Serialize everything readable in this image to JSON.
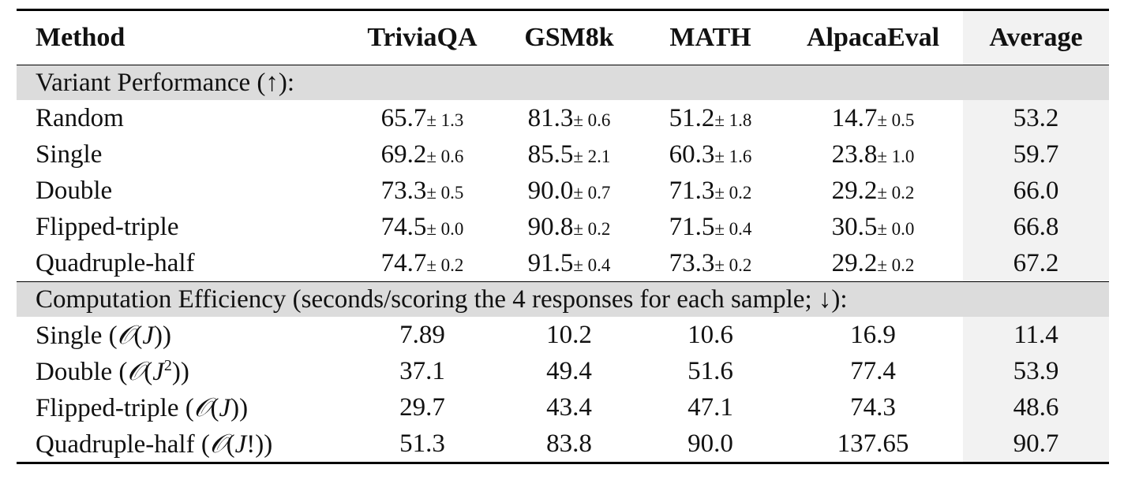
{
  "headers": [
    "Method",
    "TriviaQA",
    "GSM8k",
    "MATH",
    "AlpacaEval",
    "Average"
  ],
  "section1": {
    "label": "Variant Performance (↑):",
    "rows": [
      {
        "method": "Random",
        "vals": [
          [
            "65.7",
            "± 1.3"
          ],
          [
            "81.3",
            "± 0.6"
          ],
          [
            "51.2",
            "± 1.8"
          ],
          [
            "14.7",
            "± 0.5"
          ]
        ],
        "avg": "53.2"
      },
      {
        "method": "Single",
        "vals": [
          [
            "69.2",
            "± 0.6"
          ],
          [
            "85.5",
            "± 2.1"
          ],
          [
            "60.3",
            "± 1.6"
          ],
          [
            "23.8",
            "± 1.0"
          ]
        ],
        "avg": "59.7"
      },
      {
        "method": "Double",
        "vals": [
          [
            "73.3",
            "± 0.5"
          ],
          [
            "90.0",
            "± 0.7"
          ],
          [
            "71.3",
            "± 0.2"
          ],
          [
            "29.2",
            "± 0.2"
          ]
        ],
        "avg": "66.0"
      },
      {
        "method": "Flipped-triple",
        "vals": [
          [
            "74.5",
            "± 0.0"
          ],
          [
            "90.8",
            "± 0.2"
          ],
          [
            "71.5",
            "± 0.4"
          ],
          [
            "30.5",
            "± 0.0"
          ]
        ],
        "avg": "66.8"
      },
      {
        "method": "Quadruple-half",
        "vals": [
          [
            "74.7",
            "± 0.2"
          ],
          [
            "91.5",
            "± 0.4"
          ],
          [
            "73.3",
            "± 0.2"
          ],
          [
            "29.2",
            "± 0.2"
          ]
        ],
        "avg": "67.2"
      }
    ]
  },
  "section2": {
    "label": "Computation Efficiency (seconds/scoring the 4 responses for each sample; ↓):",
    "rows": [
      {
        "method": "Single",
        "complexity": {
          "pre": "(",
          "o": "𝒪",
          "arg": "J",
          "sup": "",
          "post": "))"
        },
        "vals": [
          "7.89",
          "10.2",
          "10.6",
          "16.9"
        ],
        "avg": "11.4"
      },
      {
        "method": "Double",
        "complexity": {
          "pre": "(",
          "o": "𝒪",
          "arg": "J",
          "sup": "2",
          "post": "))"
        },
        "vals": [
          "37.1",
          "49.4",
          "51.6",
          "77.4"
        ],
        "avg": "53.9"
      },
      {
        "method": "Flipped-triple",
        "complexity": {
          "pre": "(",
          "o": "𝒪",
          "arg": "J",
          "sup": "",
          "post": "))"
        },
        "vals": [
          "29.7",
          "43.4",
          "47.1",
          "74.3"
        ],
        "avg": "48.6"
      },
      {
        "method": "Quadruple-half",
        "complexity": {
          "pre": "(",
          "o": "𝒪",
          "arg": "J",
          "sup": "",
          "post": "!))"
        },
        "vals": [
          "51.3",
          "83.8",
          "90.0",
          "137.65"
        ],
        "avg": "90.7"
      }
    ]
  }
}
